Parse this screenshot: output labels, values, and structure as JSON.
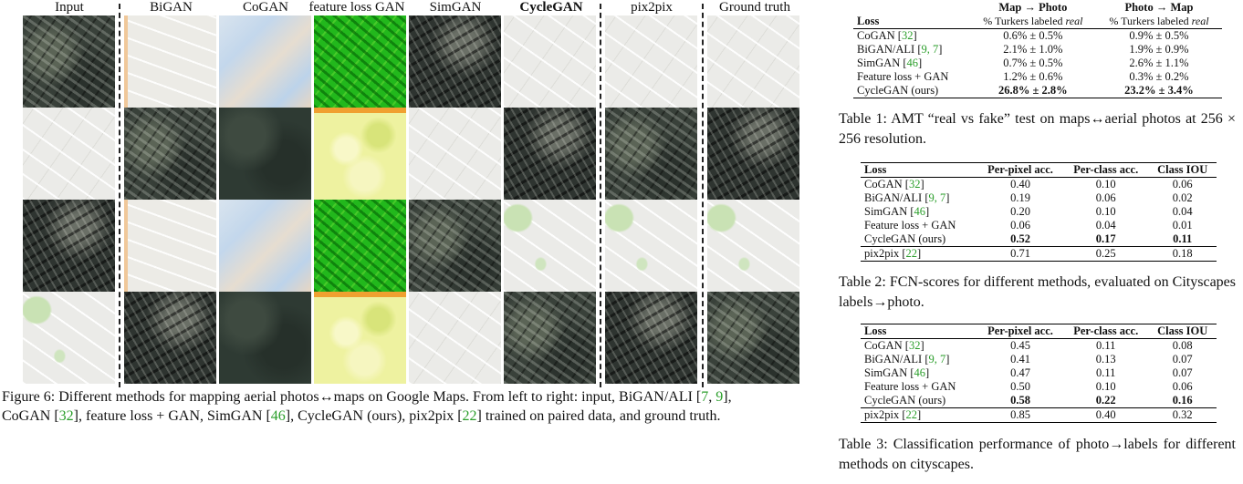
{
  "figure": {
    "columns": [
      "Input",
      "BiGAN",
      "CoGAN",
      "feature loss GAN",
      "SimGAN",
      "CycleGAN",
      "pix2pix",
      "Ground truth"
    ],
    "caption": {
      "text1": "Figure 6: Different methods for mapping aerial photos↔maps on Google Maps. From left to right: input, BiGAN/ALI [",
      "c1": "7",
      "sep1": ", ",
      "c2": "9",
      "text2": "],",
      "text3": "CoGAN [",
      "c3": "32",
      "text4": "], feature loss + GAN, SimGAN [",
      "c4": "46",
      "text5": "], CycleGAN (ours), pix2pix [",
      "c5": "22",
      "text6": "] trained on paired data, and ground truth."
    }
  },
  "table1": {
    "header": {
      "loss": "Loss",
      "col1": "Map → Photo",
      "col2": "Photo → Map",
      "sub_prefix": "% Turkers labeled ",
      "sub_em": "real"
    },
    "rows": [
      {
        "name": "CoGAN [",
        "cite": "32",
        "suffix": "]",
        "v1": "0.6% ± 0.5%",
        "v2": "0.9% ± 0.5%"
      },
      {
        "name": "BiGAN/ALI [",
        "cite": "9, 7",
        "suffix": "]",
        "v1": "2.1% ± 1.0%",
        "v2": "1.9% ± 0.9%"
      },
      {
        "name": "SimGAN [",
        "cite": "46",
        "suffix": "]",
        "v1": "0.7% ± 0.5%",
        "v2": "2.6% ± 1.1%"
      },
      {
        "name": "Feature loss + GAN",
        "cite": "",
        "suffix": "",
        "v1": "1.2% ± 0.6%",
        "v2": "0.3% ± 0.2%"
      },
      {
        "name": "CycleGAN (ours)",
        "cite": "",
        "suffix": "",
        "v1a": "26.8%",
        "v1b": " ± 2.8%",
        "v2a": "23.2%",
        "v2b": " ± 3.4%"
      }
    ],
    "caption": "Table 1: AMT “real vs fake” test on maps↔aerial photos at 256 × 256 resolution."
  },
  "table2": {
    "header": [
      "Loss",
      "Per-pixel acc.",
      "Per-class acc.",
      "Class IOU"
    ],
    "rows": [
      {
        "name": "CoGAN [",
        "cite": "32",
        "suffix": "]",
        "a": "0.40",
        "b": "0.10",
        "c": "0.06"
      },
      {
        "name": "BiGAN/ALI [",
        "cite": "9, 7",
        "suffix": "]",
        "a": "0.19",
        "b": "0.06",
        "c": "0.02"
      },
      {
        "name": "SimGAN [",
        "cite": "46",
        "suffix": "]",
        "a": "0.20",
        "b": "0.10",
        "c": "0.04"
      },
      {
        "name": "Feature loss + GAN",
        "cite": "",
        "suffix": "",
        "a": "0.06",
        "b": "0.04",
        "c": "0.01"
      },
      {
        "name": "CycleGAN (ours)",
        "cite": "",
        "suffix": "",
        "a": "0.52",
        "b": "0.17",
        "c": "0.11"
      },
      {
        "name": "pix2pix [",
        "cite": "22",
        "suffix": "]",
        "a": "0.71",
        "b": "0.25",
        "c": "0.18"
      }
    ],
    "caption": "Table 2: FCN-scores for different methods, evaluated on Cityscapes labels→photo."
  },
  "table3": {
    "header": [
      "Loss",
      "Per-pixel acc.",
      "Per-class acc.",
      "Class IOU"
    ],
    "rows": [
      {
        "name": "CoGAN [",
        "cite": "32",
        "suffix": "]",
        "a": "0.45",
        "b": "0.11",
        "c": "0.08"
      },
      {
        "name": "BiGAN/ALI [",
        "cite": "9, 7",
        "suffix": "]",
        "a": "0.41",
        "b": "0.13",
        "c": "0.07"
      },
      {
        "name": "SimGAN [",
        "cite": "46",
        "suffix": "]",
        "a": "0.47",
        "b": "0.11",
        "c": "0.07"
      },
      {
        "name": "Feature loss + GAN",
        "cite": "",
        "suffix": "",
        "a": "0.50",
        "b": "0.10",
        "c": "0.06"
      },
      {
        "name": "CycleGAN (ours)",
        "cite": "",
        "suffix": "",
        "a": "0.58",
        "b": "0.22",
        "c": "0.16"
      },
      {
        "name": "pix2pix [",
        "cite": "22",
        "suffix": "]",
        "a": "0.85",
        "b": "0.40",
        "c": "0.32"
      }
    ],
    "caption": "Table 3: Classification performance of photo→labels for different methods on cityscapes."
  }
}
